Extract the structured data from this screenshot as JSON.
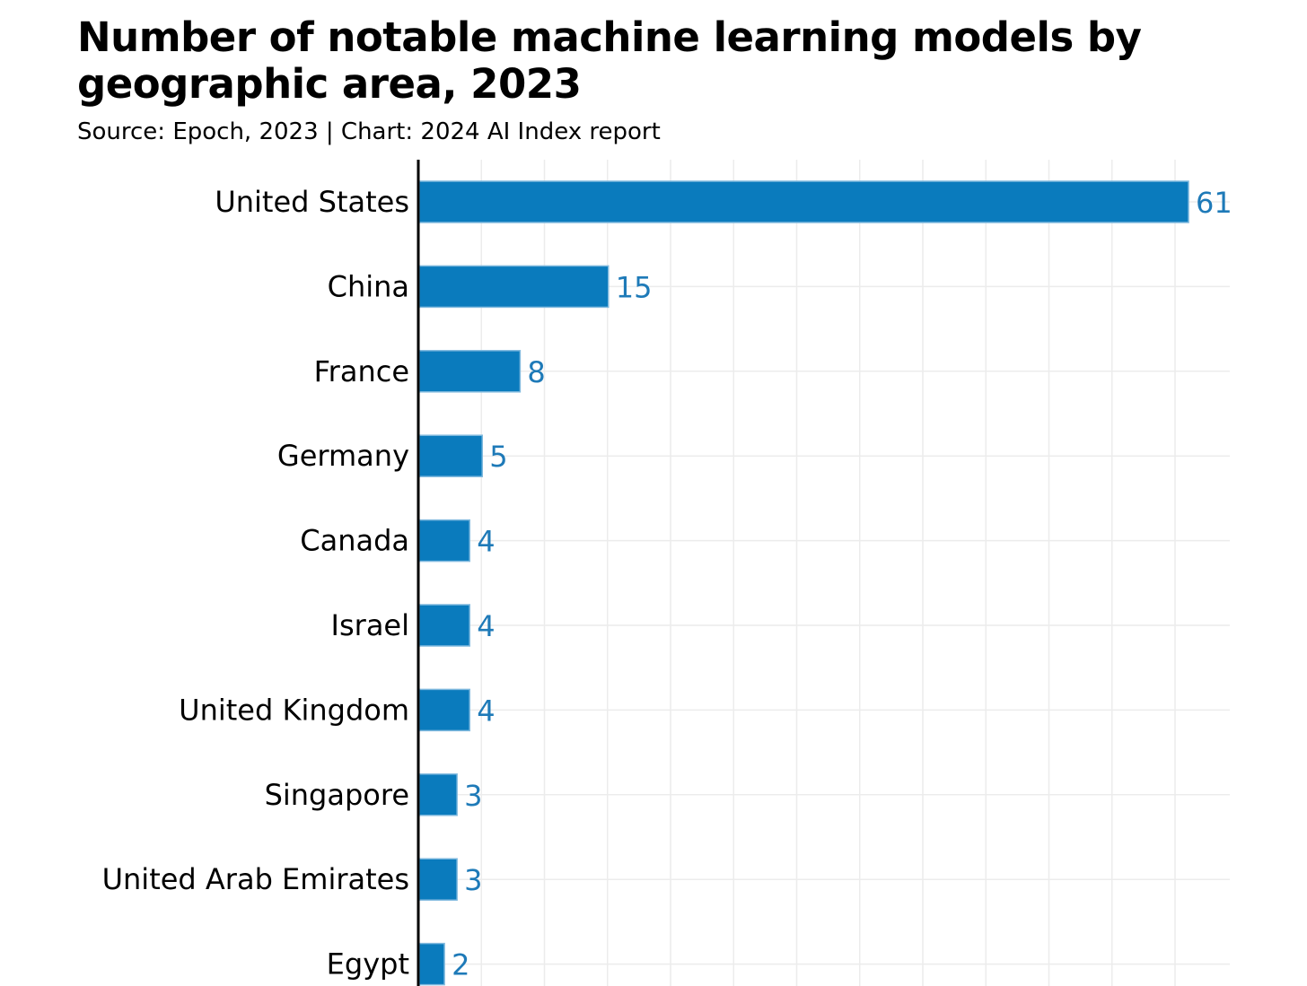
{
  "chart_data": {
    "type": "bar",
    "orientation": "horizontal",
    "title": "Number of notable machine learning models by geographic area, 2023",
    "subtitle": "Source: Epoch, 2023 | Chart: 2024 AI Index report",
    "categories": [
      "United States",
      "China",
      "France",
      "Germany",
      "Canada",
      "Israel",
      "United Kingdom",
      "Singapore",
      "United Arab Emirates",
      "Egypt"
    ],
    "values": [
      61,
      15,
      8,
      5,
      4,
      4,
      4,
      3,
      3,
      2
    ],
    "xlim": [
      0,
      64
    ],
    "grid": true,
    "data_labels": true,
    "colors": {
      "bar": "#0a7bbd",
      "label": "#1e7ab8",
      "grid": "#ececec",
      "axis": "#000000"
    }
  }
}
